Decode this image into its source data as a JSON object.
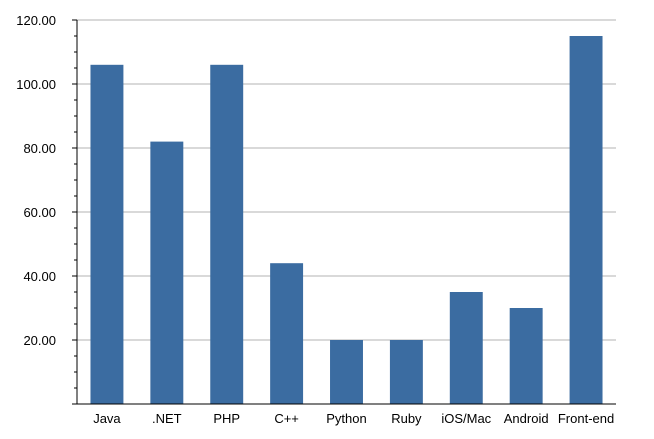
{
  "chart_data": {
    "type": "bar",
    "categories": [
      "Java",
      ".NET",
      "PHP",
      "C++",
      "Python",
      "Ruby",
      "iOS/Mac",
      "Android",
      "Front-end"
    ],
    "values": [
      106,
      82,
      106,
      44,
      20,
      20,
      35,
      30,
      115
    ],
    "ylim": [
      0,
      120
    ],
    "yticks": [
      0,
      20,
      40,
      60,
      80,
      100,
      120
    ],
    "ytick_labels": [
      "20.00",
      "40.00",
      "60.00",
      "80.00",
      "100.00",
      "120.00"
    ],
    "grid": true,
    "bar_color": "#3b6ca1",
    "grid_color": "#b3b3b3"
  }
}
